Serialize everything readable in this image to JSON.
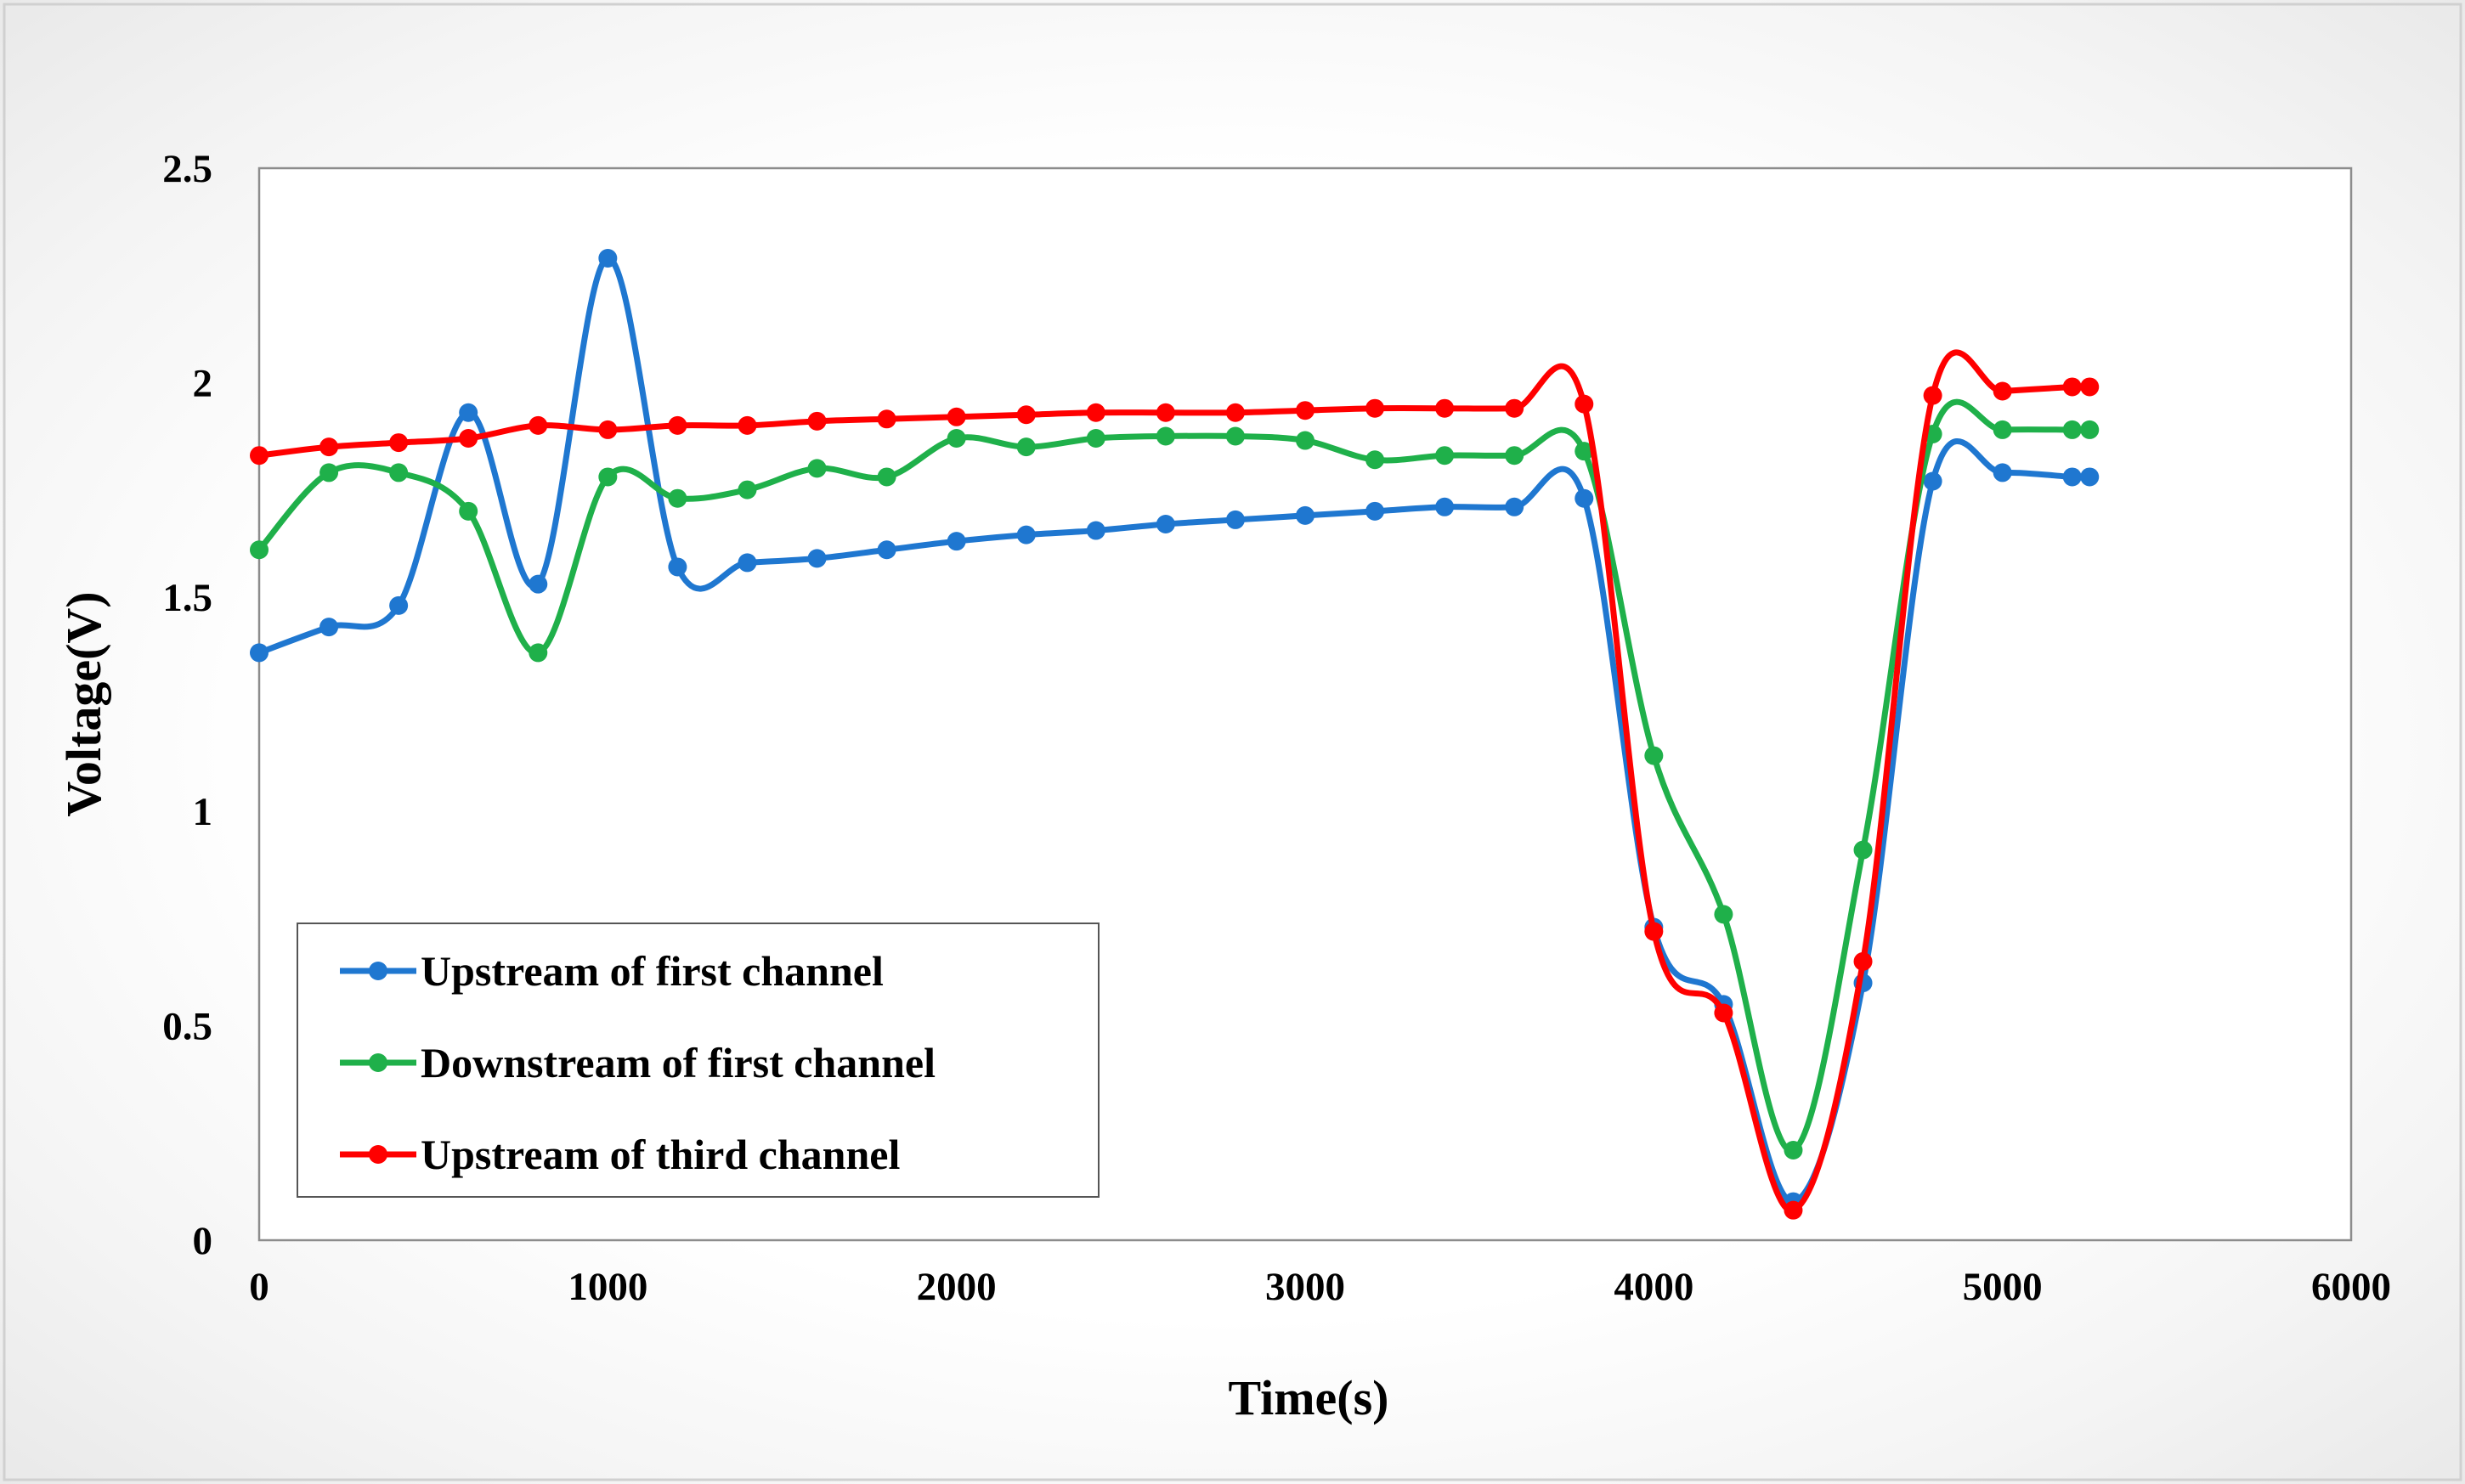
{
  "chart_data": {
    "type": "line",
    "title": "",
    "xlabel": "Time(s)",
    "ylabel": "Voltage(V)",
    "xlim": [
      0,
      6000
    ],
    "ylim": [
      0,
      2.5
    ],
    "xticks": [
      0,
      1000,
      2000,
      3000,
      4000,
      5000,
      6000
    ],
    "xtick_labels": [
      "0",
      "1000",
      "2000",
      "3000",
      "4000",
      "5000",
      "6000"
    ],
    "yticks": [
      0,
      0.5,
      1,
      1.5,
      2,
      2.5
    ],
    "ytick_labels": [
      "0",
      "0.5",
      "1",
      "1.5",
      "2",
      "2.5"
    ],
    "grid": false,
    "legend_position": "bottom-left",
    "smooth": true,
    "series": [
      {
        "name": "Upstream of first channel",
        "color": "#1f77d0",
        "x": [
          0,
          200,
          400,
          600,
          800,
          1000,
          1200,
          1400,
          1600,
          1800,
          2000,
          2200,
          2400,
          2600,
          2800,
          3000,
          3200,
          3400,
          3600,
          3800,
          4000,
          4200,
          4400,
          4600,
          4800,
          5000,
          5200,
          5250
        ],
        "y": [
          1.37,
          1.43,
          1.48,
          1.93,
          1.53,
          2.29,
          1.57,
          1.58,
          1.59,
          1.61,
          1.63,
          1.645,
          1.655,
          1.67,
          1.68,
          1.69,
          1.7,
          1.71,
          1.71,
          1.73,
          0.73,
          0.55,
          0.09,
          0.6,
          1.77,
          1.79,
          1.78,
          1.78
        ]
      },
      {
        "name": "Downstream of first channel",
        "color": "#1fb04a",
        "x": [
          0,
          200,
          400,
          600,
          800,
          1000,
          1200,
          1400,
          1600,
          1800,
          2000,
          2200,
          2400,
          2600,
          2800,
          3000,
          3200,
          3400,
          3600,
          3800,
          4000,
          4200,
          4400,
          4600,
          4800,
          5000,
          5200,
          5250
        ],
        "y": [
          1.61,
          1.79,
          1.79,
          1.7,
          1.37,
          1.78,
          1.73,
          1.75,
          1.8,
          1.78,
          1.87,
          1.85,
          1.87,
          1.875,
          1.875,
          1.865,
          1.82,
          1.83,
          1.83,
          1.84,
          1.13,
          0.76,
          0.21,
          0.91,
          1.88,
          1.89,
          1.89,
          1.89
        ]
      },
      {
        "name": "Upstream of third channel",
        "color": "#ff0000",
        "x": [
          0,
          200,
          400,
          600,
          800,
          1000,
          1200,
          1400,
          1600,
          1800,
          2000,
          2200,
          2400,
          2600,
          2800,
          3000,
          3200,
          3400,
          3600,
          3800,
          4000,
          4200,
          4400,
          4600,
          4800,
          5000,
          5200,
          5250
        ],
        "y": [
          1.83,
          1.85,
          1.86,
          1.87,
          1.9,
          1.89,
          1.9,
          1.9,
          1.91,
          1.915,
          1.92,
          1.925,
          1.93,
          1.93,
          1.93,
          1.935,
          1.94,
          1.94,
          1.94,
          1.95,
          0.72,
          0.53,
          0.07,
          0.65,
          1.97,
          1.98,
          1.99,
          1.99
        ]
      }
    ]
  }
}
